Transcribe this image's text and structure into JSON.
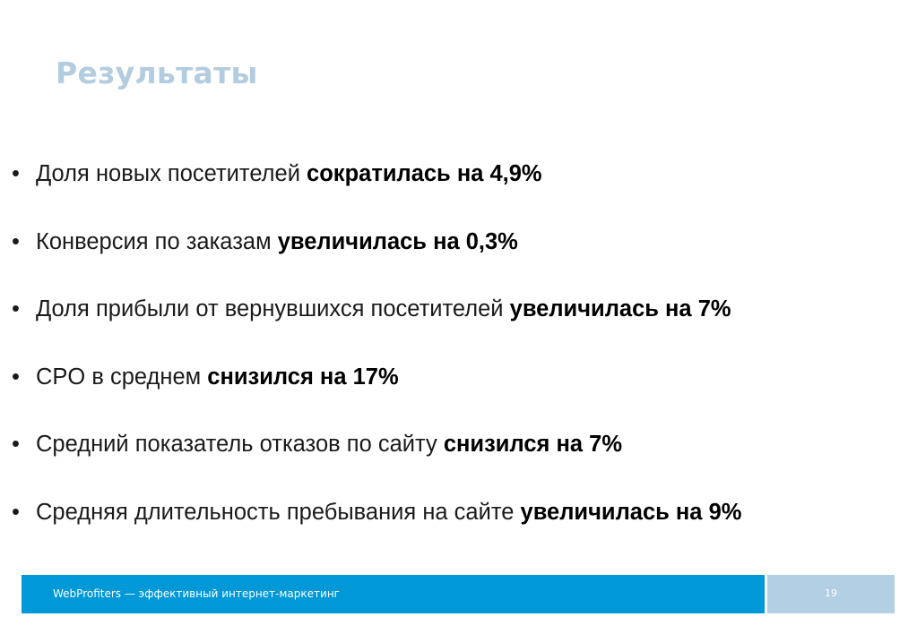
{
  "slide": {
    "title": "Результаты"
  },
  "bullets": [
    {
      "marker": "•",
      "text": "Доля новых посетителей ",
      "bold": "сократилась на 4,9%"
    },
    {
      "marker": "•",
      "text": "Конверсия по заказам ",
      "bold": "увеличилась на 0,3%"
    },
    {
      "marker": "•",
      "text": "Доля прибыли от вернувшихся посетителей ",
      "bold": "увеличилась на 7%"
    },
    {
      "marker": "•",
      "text": "CPO в среднем ",
      "bold": "снизился на 17%"
    },
    {
      "marker": "•",
      "text": "Средний показатель отказов по сайту ",
      "bold": "снизился на 7%"
    },
    {
      "marker": "•",
      "text": "Средняя длительность пребывания на сайте ",
      "bold": "увеличилась на 9%"
    }
  ],
  "footer": {
    "text": "WebProfiters — эффективный интернет-маркетинг",
    "page_number": "19"
  },
  "colors": {
    "title": "#b3cce0",
    "footer_bar": "#0098d6",
    "footer_page_box": "#b3cfe3"
  }
}
